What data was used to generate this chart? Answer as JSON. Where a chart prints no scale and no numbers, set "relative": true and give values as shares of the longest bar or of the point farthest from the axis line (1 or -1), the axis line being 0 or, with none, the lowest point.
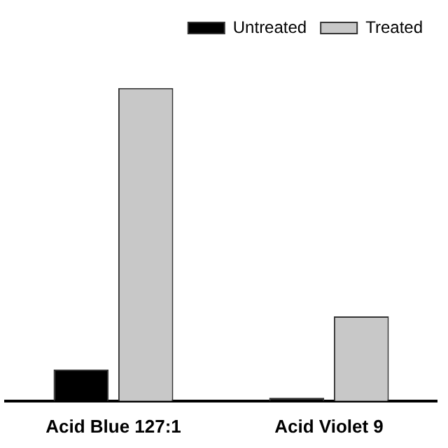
{
  "chart_data": {
    "type": "bar",
    "relative": true,
    "categories": [
      "Acid Blue 127:1",
      "Acid Violet 9"
    ],
    "series": [
      {
        "name": "Untreated",
        "color": "#000000",
        "values": [
          0.1,
          0.01
        ]
      },
      {
        "name": "Treated",
        "color": "#c8c8c8",
        "values": [
          1,
          0.27
        ]
      }
    ],
    "legend": "top right",
    "grid": false
  }
}
